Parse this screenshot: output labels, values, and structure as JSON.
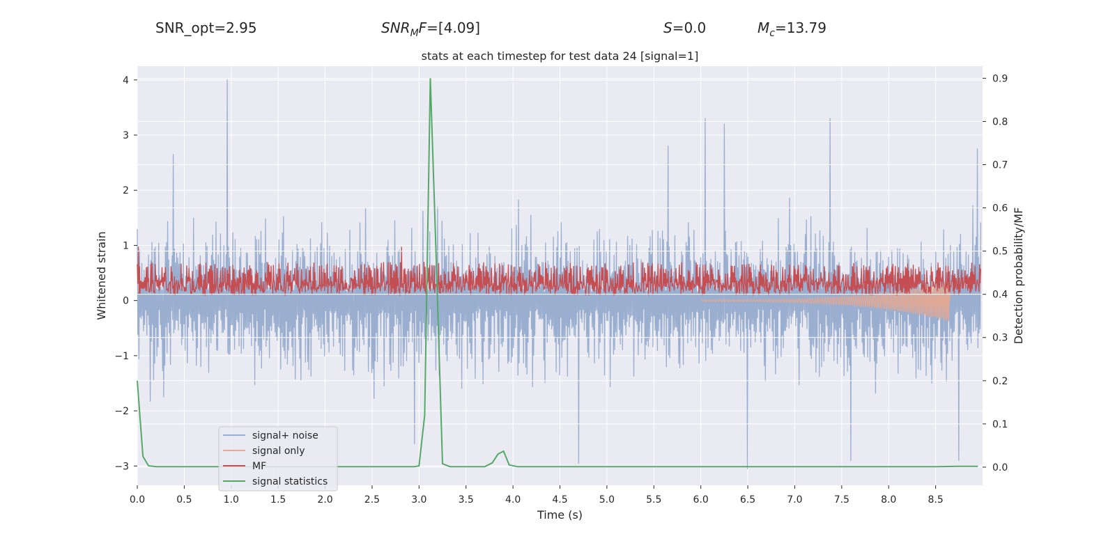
{
  "header": {
    "snr_opt": "SNR_opt=2.95",
    "snr_mf_base": "SNR",
    "snr_mf_sub": "M",
    "snr_mf_tail": "F",
    "snr_mf_value": "=[4.09]",
    "s_symbol": "S",
    "s_value": "=0.0",
    "mc_symbol": "M",
    "mc_sub": "c",
    "mc_value": "=13.79"
  },
  "chart_data": {
    "type": "line",
    "title": "stats at each timestep for test data 24 [signal=1]",
    "xlabel": "Time (s)",
    "ylabel_left": "Whitened strain",
    "ylabel_right": "Detection probability/MF",
    "xlim": [
      0.0,
      9.0
    ],
    "ylim_left": [
      -3.35,
      4.25
    ],
    "ylim_right": [
      -0.042,
      0.928
    ],
    "x_ticks": [
      0.0,
      0.5,
      1.0,
      1.5,
      2.0,
      2.5,
      3.0,
      3.5,
      4.0,
      4.5,
      5.0,
      5.5,
      6.0,
      6.5,
      7.0,
      7.5,
      8.0,
      8.5
    ],
    "x_tick_labels": [
      "0.0",
      "0.5",
      "1.0",
      "1.5",
      "2.0",
      "2.5",
      "3.0",
      "3.5",
      "4.0",
      "4.5",
      "5.0",
      "5.5",
      "6.0",
      "6.5",
      "7.0",
      "7.5",
      "8.0",
      "8.5"
    ],
    "y_left_ticks": [
      -3,
      -2,
      -1,
      0,
      1,
      2,
      3,
      4
    ],
    "y_left_tick_labels": [
      "−3",
      "−2",
      "−1",
      "0",
      "1",
      "2",
      "3",
      "4"
    ],
    "y_right_ticks": [
      0.0,
      0.1,
      0.2,
      0.3,
      0.4,
      0.5,
      0.6,
      0.7,
      0.8,
      0.9
    ],
    "y_right_tick_labels": [
      "0.0",
      "0.1",
      "0.2",
      "0.3",
      "0.4",
      "0.5",
      "0.6",
      "0.7",
      "0.8",
      "0.9"
    ],
    "grid": true,
    "legend_position": "lower-left",
    "colors": {
      "background": "#eaeaf2",
      "grid": "#ffffff",
      "noise": "#9aaed0",
      "signal": "#e8a88f",
      "mf": "#c44e52",
      "stats": "#55a868"
    },
    "series": [
      {
        "name": "signal+ noise",
        "axis": "left",
        "style": "noise-band",
        "description_values": {
          "typical_range": [
            -1.3,
            1.3
          ],
          "peaks": [
            {
              "x": 0.96,
              "y": 4.0
            },
            {
              "x": 0.38,
              "y": 2.65
            },
            {
              "x": 7.38,
              "y": 3.3
            },
            {
              "x": 6.05,
              "y": 3.3
            },
            {
              "x": 6.25,
              "y": 3.2
            },
            {
              "x": 5.65,
              "y": 2.8
            },
            {
              "x": 8.95,
              "y": 2.75
            },
            {
              "x": 4.7,
              "y": -2.95
            },
            {
              "x": 6.5,
              "y": -3.05
            },
            {
              "x": 7.6,
              "y": -2.9
            },
            {
              "x": 8.75,
              "y": -2.9
            },
            {
              "x": 2.95,
              "y": -2.6
            }
          ]
        }
      },
      {
        "name": "signal only",
        "axis": "left",
        "style": "chirp",
        "description_values": {
          "start_x": 6.0,
          "end_x": 8.65,
          "end_amplitude": 0.35
        }
      },
      {
        "name": "MF",
        "axis": "right",
        "style": "band",
        "description_values": {
          "typical_range": [
            0.4,
            0.47
          ],
          "max": 0.51
        }
      },
      {
        "name": "signal statistics",
        "axis": "right",
        "style": "line",
        "x": [
          0.0,
          0.06,
          0.12,
          0.2,
          0.4,
          1.0,
          2.0,
          2.95,
          3.0,
          3.06,
          3.12,
          3.18,
          3.25,
          3.33,
          3.5,
          3.7,
          3.78,
          3.84,
          3.9,
          3.96,
          4.05,
          4.5,
          5.0,
          6.0,
          7.0,
          8.0,
          8.5,
          8.75,
          8.95
        ],
        "y": [
          0.2,
          0.025,
          0.003,
          0.001,
          0.001,
          0.001,
          0.001,
          0.001,
          0.003,
          0.12,
          0.9,
          0.5,
          0.008,
          0.001,
          0.001,
          0.001,
          0.01,
          0.03,
          0.037,
          0.005,
          0.001,
          0.001,
          0.001,
          0.001,
          0.001,
          0.001,
          0.001,
          0.002,
          0.002
        ]
      }
    ]
  }
}
